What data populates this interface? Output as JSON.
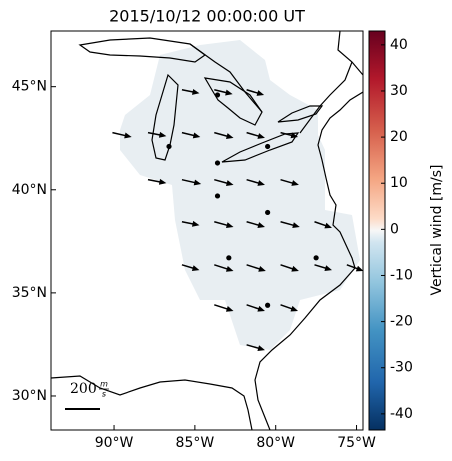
{
  "chart_data": {
    "type": "vector-map",
    "title": "2015/10/12 00:00:00 UT",
    "xlim": [
      -93.9,
      -74.6
    ],
    "ylim": [
      28.35,
      47.7
    ],
    "xticks": [
      {
        "value": -90,
        "label": "90°W"
      },
      {
        "value": -85,
        "label": "85°W"
      },
      {
        "value": -80,
        "label": "80°W"
      },
      {
        "value": -75,
        "label": "75°W"
      }
    ],
    "yticks": [
      {
        "value": 30,
        "label": "30°N"
      },
      {
        "value": 35,
        "label": "35°N"
      },
      {
        "value": 40,
        "label": "40°N"
      },
      {
        "value": 45,
        "label": "45°N"
      }
    ],
    "colorbar": {
      "label": "Vertical wind [m/s]",
      "lim": [
        -43.5,
        43.0
      ],
      "ticks": [
        -40,
        -30,
        -20,
        -10,
        0,
        10,
        20,
        30,
        40
      ]
    },
    "scale": {
      "value": 200,
      "numerator": "m",
      "denominator": "s"
    },
    "arrow_color": "#000000",
    "station_color": "#000000",
    "vectors": {
      "lon": [
        -85.8,
        -83.8,
        -81.8,
        -90.1,
        -87.9,
        -85.8,
        -83.8,
        -81.8,
        -79.7,
        -87.9,
        -85.8,
        -83.8,
        -81.8,
        -79.7,
        -85.8,
        -83.8,
        -81.8,
        -79.7,
        -77.6,
        -85.8,
        -83.8,
        -81.8,
        -79.7,
        -77.6,
        -75.6,
        -83.8,
        -81.8,
        -79.7,
        -81.8
      ],
      "lat": [
        44.85,
        44.85,
        44.85,
        42.77,
        42.77,
        42.77,
        42.77,
        42.77,
        42.77,
        40.49,
        40.49,
        40.49,
        40.49,
        40.49,
        38.45,
        38.45,
        38.45,
        38.45,
        38.45,
        36.36,
        36.36,
        36.36,
        36.36,
        36.36,
        36.36,
        34.42,
        34.42,
        34.42,
        32.48
      ],
      "u": [
        100,
        105,
        100,
        110,
        105,
        105,
        110,
        105,
        100,
        105,
        110,
        110,
        105,
        105,
        100,
        110,
        105,
        110,
        100,
        100,
        110,
        110,
        105,
        100,
        95,
        110,
        105,
        100,
        105
      ],
      "v": [
        -20,
        -25,
        -30,
        -25,
        -20,
        -25,
        -30,
        -30,
        -25,
        -20,
        -25,
        -30,
        -30,
        -30,
        -20,
        -30,
        -30,
        -30,
        -35,
        -30,
        -35,
        -35,
        -35,
        -30,
        -35,
        -35,
        -35,
        -35,
        -30
      ]
    },
    "stations": {
      "lon": [
        -83.6,
        -86.6,
        -80.5,
        -83.6,
        -83.6,
        -80.5,
        -82.9,
        -77.5,
        -80.5
      ],
      "lat": [
        44.6,
        42.1,
        42.1,
        41.3,
        39.7,
        38.9,
        36.7,
        36.7,
        34.4
      ]
    }
  }
}
